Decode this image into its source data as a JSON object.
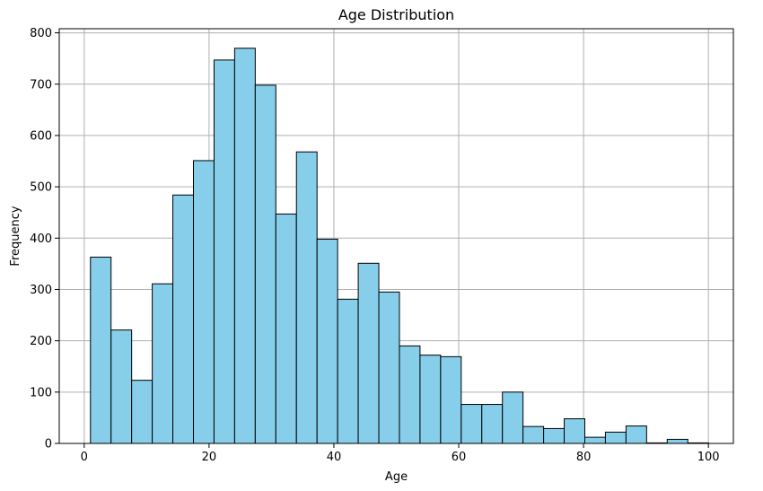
{
  "chart_data": {
    "type": "bar",
    "title": "Age Distribution",
    "xlabel": "Age",
    "ylabel": "Frequency",
    "xlim": [
      -4,
      104
    ],
    "ylim": [
      0,
      808
    ],
    "grid": true,
    "bar_color": "#87ceeb",
    "edge_color": "#000000",
    "grid_color": "#b0b0b0",
    "x_ticks": [
      0,
      20,
      40,
      60,
      80,
      100
    ],
    "y_ticks": [
      0,
      100,
      200,
      300,
      400,
      500,
      600,
      700,
      800
    ],
    "bin_start": 1,
    "bin_width": 3.3,
    "values": [
      363,
      221,
      123,
      311,
      484,
      551,
      747,
      770,
      698,
      447,
      568,
      398,
      281,
      351,
      295,
      190,
      172,
      169,
      76,
      76,
      100,
      33,
      29,
      48,
      12,
      22,
      34,
      1,
      8,
      1
    ]
  }
}
